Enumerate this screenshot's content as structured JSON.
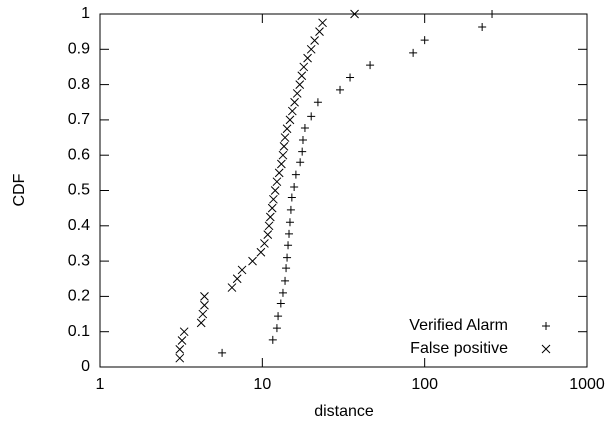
{
  "chart_data": {
    "type": "scatter",
    "x_label": "distance",
    "y_label": "CDF",
    "x_scale": "log",
    "xlim": [
      1,
      1000
    ],
    "xticks": [
      1,
      10,
      100,
      1000
    ],
    "ylim": [
      0,
      1
    ],
    "yticks": [
      0,
      0.1,
      0.2,
      0.3,
      0.4,
      0.5,
      0.6,
      0.7,
      0.8,
      0.9,
      1
    ],
    "legend_position": "lower-right",
    "series": [
      {
        "name": "Verified Alarm",
        "color": "#000000",
        "marker": "plus",
        "x": [
          5.65,
          11.6,
          12.3,
          12.5,
          13.0,
          13.4,
          13.8,
          14.0,
          14.2,
          14.4,
          14.6,
          14.8,
          15.0,
          15.2,
          15.7,
          16.1,
          17.1,
          17.6,
          17.8,
          18.3,
          20.0,
          22.0,
          30.1,
          34.7,
          46.1,
          84.9,
          100,
          226,
          260
        ],
        "values": [
          0.04,
          0.077,
          0.11,
          0.144,
          0.18,
          0.21,
          0.244,
          0.28,
          0.31,
          0.345,
          0.377,
          0.41,
          0.445,
          0.48,
          0.51,
          0.545,
          0.58,
          0.61,
          0.643,
          0.677,
          0.71,
          0.75,
          0.785,
          0.82,
          0.855,
          0.89,
          0.926,
          0.963,
          1.0
        ]
      },
      {
        "name": "False positive",
        "color": "#000000",
        "marker": "cross",
        "x": [
          3.1,
          3.1,
          3.2,
          3.3,
          4.2,
          4.3,
          4.4,
          4.4,
          6.5,
          7.0,
          7.5,
          8.7,
          9.8,
          10.3,
          10.8,
          11.0,
          11.2,
          11.5,
          11.7,
          12.0,
          12.3,
          12.7,
          13.1,
          13.4,
          13.6,
          13.8,
          14.2,
          14.8,
          15.3,
          15.8,
          16.4,
          17.0,
          17.5,
          18.0,
          19.0,
          20.0,
          21.0,
          22.5,
          23.5,
          37
        ],
        "values": [
          0.025,
          0.05,
          0.075,
          0.1,
          0.125,
          0.15,
          0.175,
          0.2,
          0.225,
          0.25,
          0.275,
          0.3,
          0.325,
          0.35,
          0.375,
          0.4,
          0.425,
          0.45,
          0.475,
          0.5,
          0.525,
          0.55,
          0.575,
          0.6,
          0.625,
          0.65,
          0.675,
          0.7,
          0.725,
          0.75,
          0.775,
          0.8,
          0.825,
          0.85,
          0.875,
          0.9,
          0.925,
          0.95,
          0.975,
          1.0
        ]
      }
    ]
  }
}
